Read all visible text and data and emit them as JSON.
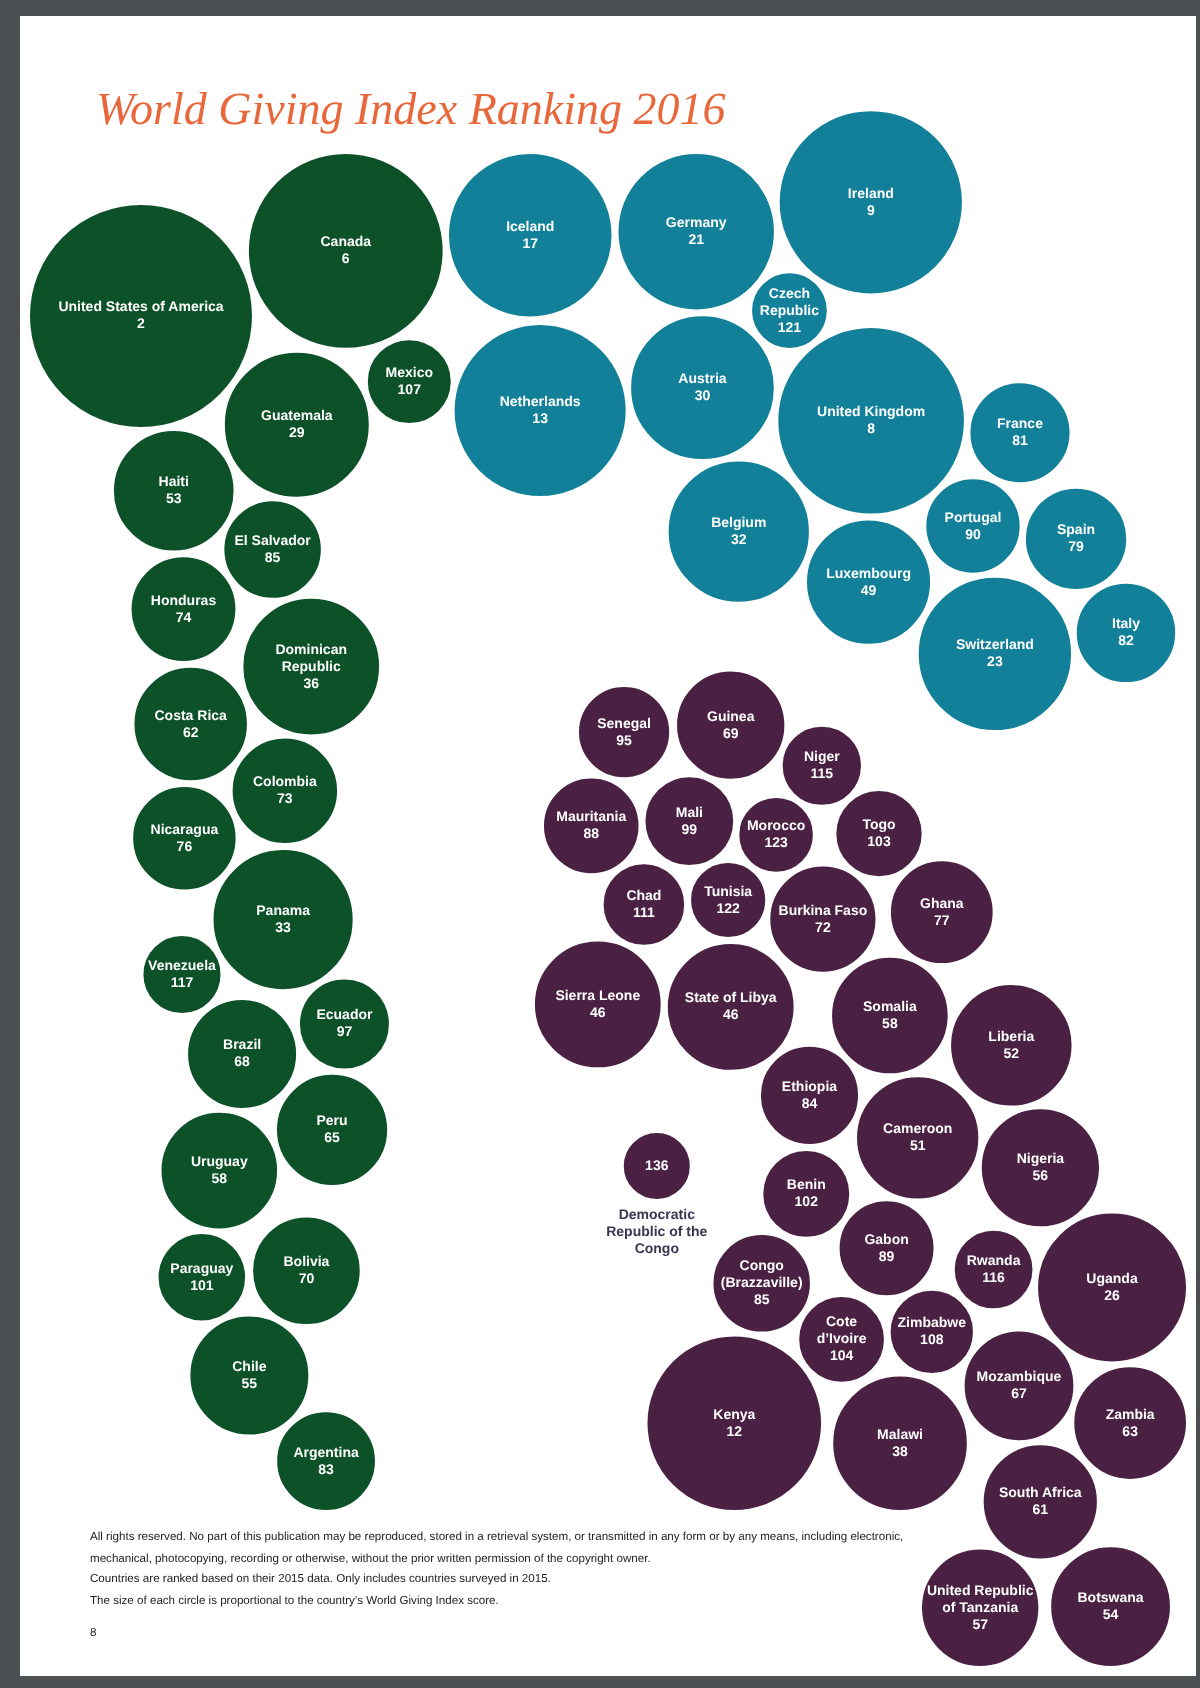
{
  "chart_data": {
    "type": "other",
    "title": "World Giving Index Ranking 2016",
    "categories": [
      "Canada",
      "United States of America",
      "Mexico",
      "Guatemala",
      "Haiti",
      "El Salvador",
      "Honduras",
      "Dominican Republic",
      "Costa Rica",
      "Nicaragua",
      "Colombia",
      "Panama",
      "Venezuela",
      "Ecuador",
      "Brazil",
      "Peru",
      "Uruguay",
      "Paraguay",
      "Bolivia",
      "Chile",
      "Argentina",
      "Iceland",
      "Netherlands",
      "Germany",
      "Ireland",
      "Austria",
      "Belgium",
      "Czech Republic",
      "United Kingdom",
      "France",
      "Luxembourg",
      "Portugal",
      "Spain",
      "Switzerland",
      "Italy",
      "Senegal",
      "Guinea",
      "Mauritania",
      "Mali",
      "Tunisia",
      "Niger",
      "Chad",
      "Morocco",
      "Sierra Leone",
      "Togo",
      "Ghana",
      "State of Libya",
      "Somalia",
      "Democratic Republic of the Congo",
      "Burkina Faso",
      "Liberia",
      "Ethiopia",
      "Nigeria",
      "Congo (Brazzaville)",
      "Cameroon",
      "Kenya",
      "Benin",
      "Gabon",
      "Uganda",
      "Cote d’Ivoire",
      "Rwanda",
      "Malawi",
      "Zimbabwe",
      "Mozambique",
      "United Republic of Tanzania",
      "Zambia",
      "Botswana",
      "South Africa"
    ],
    "values": [
      6,
      2,
      107,
      29,
      53,
      85,
      74,
      36,
      62,
      76,
      73,
      33,
      117,
      97,
      68,
      65,
      58,
      101,
      70,
      55,
      83,
      17,
      13,
      21,
      9,
      30,
      32,
      121,
      8,
      81,
      49,
      90,
      79,
      23,
      82,
      95,
      69,
      88,
      99,
      122,
      115,
      111,
      123,
      46,
      103,
      77,
      46,
      58,
      136,
      72,
      52,
      84,
      56,
      85,
      51,
      12,
      102,
      89,
      26,
      104,
      116,
      38,
      108,
      67,
      57,
      63,
      54,
      61
    ],
    "colors": [
      "#0c5128",
      "#0c5128",
      "#0c5128",
      "#0c5128",
      "#0c5128",
      "#0c5128",
      "#0c5128",
      "#0c5128",
      "#0c5128",
      "#0c5128",
      "#0c5128",
      "#0c5128",
      "#0c5128",
      "#0c5128",
      "#0c5128",
      "#0c5128",
      "#0c5128",
      "#0c5128",
      "#0c5128",
      "#0c5128",
      "#0c5128",
      "#13809a",
      "#13809a",
      "#13809a",
      "#13809a",
      "#13809a",
      "#13809a",
      "#13809a",
      "#13809a",
      "#13809a",
      "#13809a",
      "#13809a",
      "#13809a",
      "#13809a",
      "#13809a",
      "#4a2142",
      "#4a2142",
      "#4a2142",
      "#4a2142",
      "#4a2142",
      "#4a2142",
      "#4a2142",
      "#4a2142",
      "#4a2142",
      "#4a2142",
      "#4a2142",
      "#4a2142",
      "#4a2142",
      "#4a2142",
      "#4a2142",
      "#4a2142",
      "#4a2142",
      "#4a2142",
      "#4a2142",
      "#4a2142",
      "#4a2142",
      "#4a2142",
      "#4a2142",
      "#4a2142",
      "#4a2142",
      "#4a2142",
      "#4a2142",
      "#4a2142",
      "#4a2142",
      "#4a2142",
      "#4a2142",
      "#4a2142",
      "#4a2142"
    ],
    "data_labels": true,
    "annotations": [
      "All rights reserved. No part of this publication may be reproduced, stored in a retrieval system, or transmitted in any form or by any means, including electronic, mechanical, photocopying, recording or otherwise, without the prior written permission of the copyright owner.",
      "Countries are ranked based on their 2015 data. Only includes countries surveyed in 2015.",
      "The size of each circle is proportional to the country’s World Giving Index score.",
      "8"
    ]
  }
}
